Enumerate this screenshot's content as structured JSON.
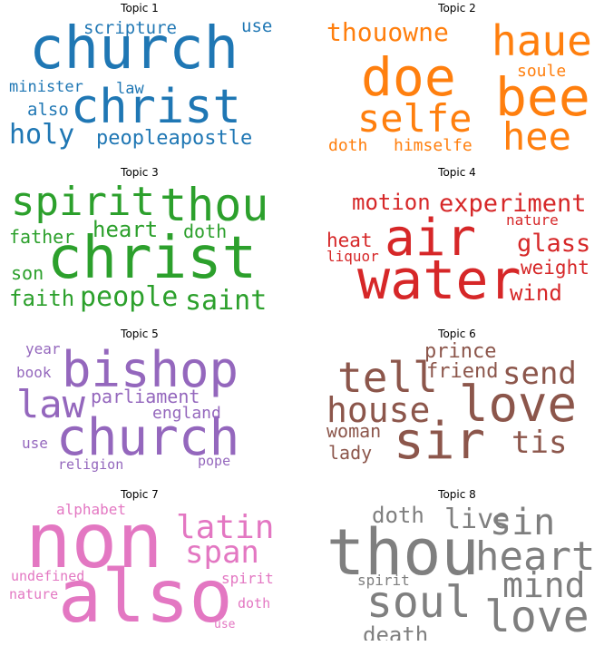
{
  "topics": [
    {
      "title": "Topic 1",
      "color": "#1f77b4",
      "words": [
        "church",
        "christ",
        "holy",
        "peopleapostle",
        "scripture",
        "use",
        "minister",
        "law",
        "also"
      ]
    },
    {
      "title": "Topic 2",
      "color": "#ff7f0e",
      "words": [
        "doe",
        "haue",
        "bee",
        "selfe",
        "hee",
        "thouowne",
        "soule",
        "doth",
        "himselfe"
      ]
    },
    {
      "title": "Topic 3",
      "color": "#2ca02c",
      "words": [
        "christ",
        "spirit",
        "thou",
        "people",
        "saint",
        "heart",
        "father",
        "doth",
        "son",
        "faith"
      ]
    },
    {
      "title": "Topic 4",
      "color": "#d62728",
      "words": [
        "water",
        "air",
        "experiment",
        "motion",
        "glass",
        "weight",
        "wind",
        "heat",
        "liquor",
        "nature"
      ]
    },
    {
      "title": "Topic 5",
      "color": "#9467bd",
      "words": [
        "church",
        "bishop",
        "law",
        "parliament",
        "england",
        "book",
        "year",
        "use",
        "religion",
        "pope"
      ]
    },
    {
      "title": "Topic 6",
      "color": "#8c564b",
      "words": [
        "sir",
        "love",
        "tell",
        "house",
        "send",
        "tis",
        "prince",
        "friend",
        "woman",
        "lady"
      ]
    },
    {
      "title": "Topic 7",
      "color": "#e377c2",
      "words": [
        "non",
        "also",
        "latin",
        "span",
        "alphabet",
        "undefined",
        "nature",
        "spirit",
        "doth",
        "use"
      ]
    },
    {
      "title": "Topic 8",
      "color": "#7f7f7f",
      "words": [
        "thou",
        "heart",
        "soul",
        "love",
        "mind",
        "sin",
        "live",
        "doth",
        "spirit",
        "death"
      ]
    }
  ]
}
